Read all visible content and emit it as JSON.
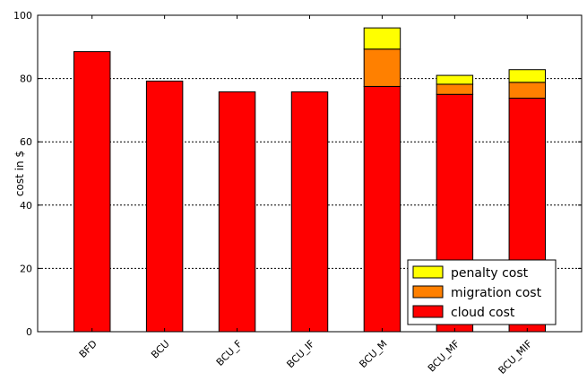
{
  "chart_data": {
    "type": "bar",
    "stacked": true,
    "title": "",
    "xlabel": "",
    "ylabel": "cost in $",
    "ylim": [
      0,
      100
    ],
    "yticks": [
      0,
      20,
      40,
      60,
      80,
      100
    ],
    "ytick_labels": [
      "0",
      "20",
      "40",
      "60",
      "80",
      "100"
    ],
    "grid": "y-dotted",
    "legend_position": "bottom-right",
    "categories": [
      "BFD",
      "BCU",
      "BCU_F",
      "BCU_IF",
      "BCU_M",
      "BCU_MF",
      "BCU_MIF"
    ],
    "series": [
      {
        "name": "cloud cost",
        "color": "#ff0000",
        "values": [
          88.5,
          79.2,
          75.8,
          75.8,
          77.5,
          75.0,
          73.8
        ]
      },
      {
        "name": "migration cost",
        "color": "#ff8000",
        "values": [
          0,
          0,
          0,
          0,
          11.8,
          3.2,
          5.0
        ]
      },
      {
        "name": "penalty cost",
        "color": "#ffff00",
        "values": [
          0,
          0,
          0,
          0,
          6.7,
          2.8,
          4.0
        ]
      }
    ],
    "legend_order": [
      "penalty cost",
      "migration cost",
      "cloud cost"
    ]
  }
}
